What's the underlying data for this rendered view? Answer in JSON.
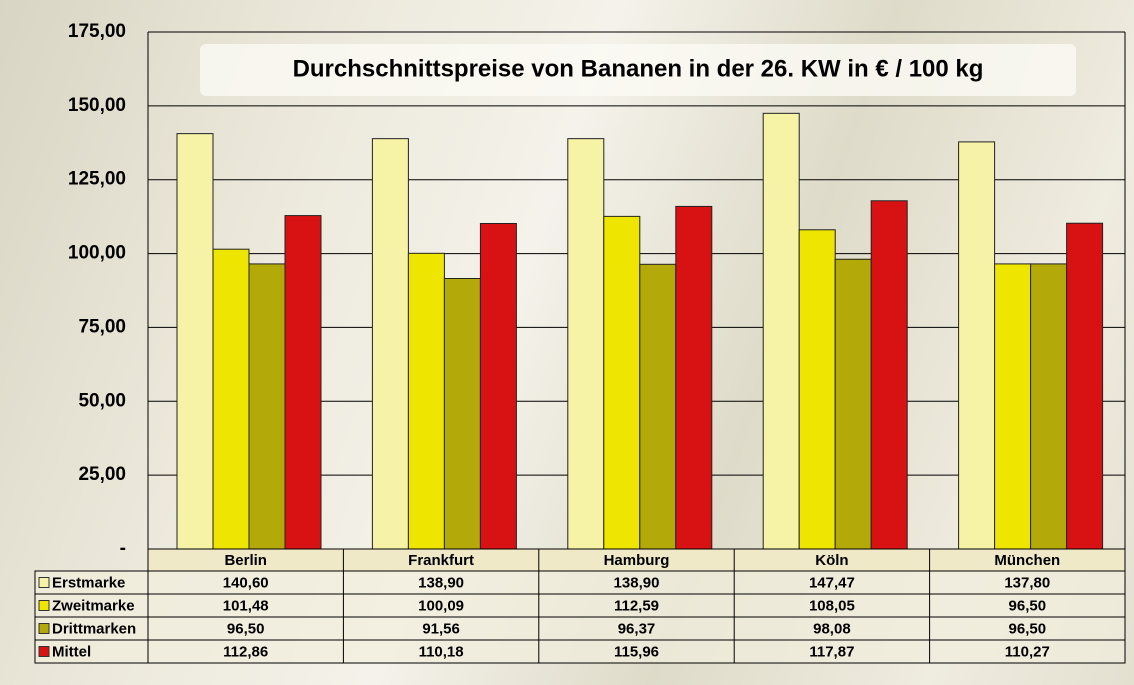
{
  "chart_data": {
    "type": "bar",
    "title": "Durchschnittspreise von Bananen in der 26. KW in € / 100 kg",
    "categories": [
      "Berlin",
      "Frankfurt",
      "Hamburg",
      "Köln",
      "München"
    ],
    "series": [
      {
        "name": "Erstmarke",
        "color": "#f6f2a6",
        "values": [
          140.6,
          138.9,
          138.9,
          147.47,
          137.8
        ],
        "value_labels": [
          "140,60",
          "138,90",
          "138,90",
          "147,47",
          "137,80"
        ]
      },
      {
        "name": "Zweitmarke",
        "color": "#efe600",
        "values": [
          101.48,
          100.09,
          112.59,
          108.05,
          96.5
        ],
        "value_labels": [
          "101,48",
          "100,09",
          "112,59",
          "108,05",
          "96,50"
        ]
      },
      {
        "name": "Drittmarken",
        "color": "#b3aa0a",
        "values": [
          96.5,
          91.56,
          96.37,
          98.08,
          96.5
        ],
        "value_labels": [
          "96,50",
          "91,56",
          "96,37",
          "98,08",
          "96,50"
        ]
      },
      {
        "name": "Mittel",
        "color": "#d81212",
        "values": [
          112.86,
          110.18,
          115.96,
          117.87,
          110.27
        ],
        "value_labels": [
          "112,86",
          "110,18",
          "115,96",
          "117,87",
          "110,27"
        ]
      }
    ],
    "ylim": [
      0,
      175
    ],
    "yticks": [
      {
        "value": 0,
        "label": "-"
      },
      {
        "value": 25,
        "label": "25,00"
      },
      {
        "value": 50,
        "label": "50,00"
      },
      {
        "value": 75,
        "label": "75,00"
      },
      {
        "value": 100,
        "label": "100,00"
      },
      {
        "value": 125,
        "label": "125,00"
      },
      {
        "value": 150,
        "label": "150,00"
      },
      {
        "value": 175,
        "label": "175,00"
      }
    ],
    "grid": true
  }
}
